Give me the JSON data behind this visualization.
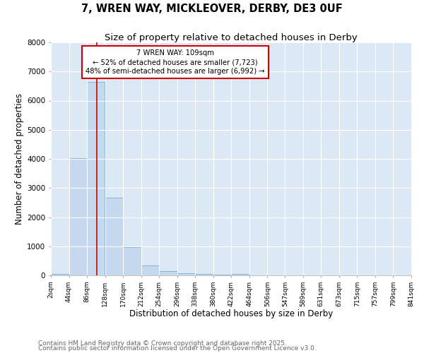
{
  "title1": "7, WREN WAY, MICKLEOVER, DERBY, DE3 0UF",
  "title2": "Size of property relative to detached houses in Derby",
  "xlabel": "Distribution of detached houses by size in Derby",
  "ylabel": "Number of detached properties",
  "bar_color": "#c5d8ee",
  "bar_edge_color": "#7aabce",
  "bg_color": "#dde8f5",
  "grid_color": "white",
  "vline_x": 109,
  "vline_color": "#cc0000",
  "annotation_text": "7 WREN WAY: 109sqm\n← 52% of detached houses are smaller (7,723)\n48% of semi-detached houses are larger (6,992) →",
  "annotation_box_color": "#cc0000",
  "bins_left": [
    2,
    44,
    86,
    128,
    170,
    212,
    254,
    296,
    338,
    380,
    422,
    464,
    506,
    547,
    589,
    631,
    673,
    715,
    757,
    799
  ],
  "bin_width": 42,
  "values": [
    55,
    4020,
    6640,
    2660,
    980,
    340,
    145,
    75,
    45,
    25,
    45,
    5,
    0,
    0,
    0,
    0,
    0,
    0,
    0,
    0
  ],
  "ylim": [
    0,
    8000
  ],
  "yticks": [
    0,
    1000,
    2000,
    3000,
    4000,
    5000,
    6000,
    7000,
    8000
  ],
  "xlim": [
    2,
    841
  ],
  "xtick_labels": [
    "2sqm",
    "44sqm",
    "86sqm",
    "128sqm",
    "170sqm",
    "212sqm",
    "254sqm",
    "296sqm",
    "338sqm",
    "380sqm",
    "422sqm",
    "464sqm",
    "506sqm",
    "547sqm",
    "589sqm",
    "631sqm",
    "673sqm",
    "715sqm",
    "757sqm",
    "799sqm",
    "841sqm"
  ],
  "xtick_positions": [
    2,
    44,
    86,
    128,
    170,
    212,
    254,
    296,
    338,
    380,
    422,
    464,
    506,
    547,
    589,
    631,
    673,
    715,
    757,
    799,
    841
  ],
  "footnote1": "Contains HM Land Registry data © Crown copyright and database right 2025.",
  "footnote2": "Contains public sector information licensed under the Open Government Licence v3.0.",
  "title_fontsize": 10.5,
  "subtitle_fontsize": 9.5,
  "axis_label_fontsize": 8.5,
  "tick_fontsize": 6.5,
  "footnote_fontsize": 6.5
}
